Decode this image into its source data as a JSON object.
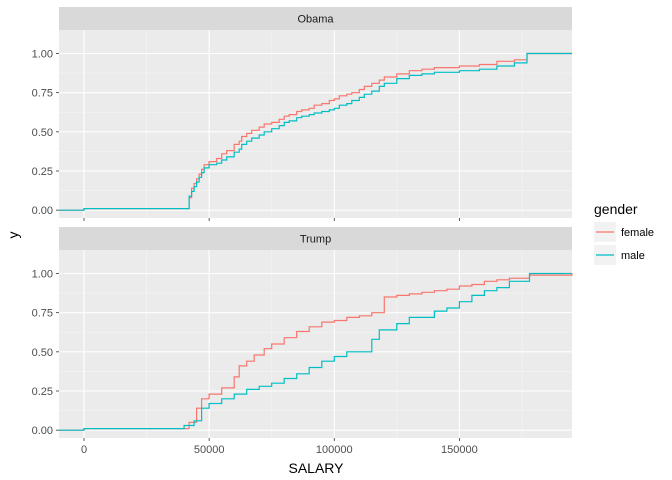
{
  "chart_data": {
    "type": "line",
    "subtype": "step (empirical cumulative distribution)",
    "xlabel": "SALARY",
    "ylabel": "y",
    "xlim": [
      -10000,
      195000
    ],
    "ylim": [
      -0.05,
      1.15
    ],
    "x_ticks": [
      0,
      50000,
      100000,
      150000
    ],
    "x_tick_labels": [
      "0",
      "50000",
      "100000",
      "150000"
    ],
    "y_ticks": [
      0,
      0.25,
      0.5,
      0.75,
      1
    ],
    "y_tick_labels": [
      "0.00",
      "0.25",
      "0.50",
      "0.75",
      "1.00"
    ],
    "grid": true,
    "legend": {
      "title": "gender",
      "position": "right",
      "entries": [
        {
          "name": "female",
          "color": "#F8766D"
        },
        {
          "name": "male",
          "color": "#00BFC4"
        }
      ]
    },
    "colors": {
      "panel_bg": "#EBEBEB",
      "strip_bg": "#D9D9D9",
      "grid_major": "#FFFFFF",
      "female": "#F8766D",
      "male": "#00BFC4"
    },
    "panels": [
      {
        "label": "Obama",
        "series": [
          {
            "name": "female",
            "x": [
              -10000,
              0,
              42000,
              43000,
              44000,
              45000,
              46000,
              47000,
              48000,
              50000,
              53000,
              55000,
              57000,
              60000,
              62000,
              63000,
              65000,
              67000,
              70000,
              72000,
              75000,
              78000,
              80000,
              82000,
              85000,
              87000,
              90000,
              92000,
              95000,
              98000,
              100000,
              102000,
              105000,
              107000,
              110000,
              112000,
              115000,
              118000,
              120000,
              125000,
              130000,
              135000,
              140000,
              150000,
              158000,
              165000,
              172000,
              177000,
              195000
            ],
            "y": [
              0,
              0.01,
              0.08,
              0.14,
              0.17,
              0.2,
              0.23,
              0.26,
              0.29,
              0.31,
              0.33,
              0.36,
              0.38,
              0.42,
              0.44,
              0.47,
              0.49,
              0.51,
              0.53,
              0.55,
              0.56,
              0.58,
              0.6,
              0.61,
              0.63,
              0.64,
              0.65,
              0.67,
              0.68,
              0.7,
              0.71,
              0.73,
              0.74,
              0.75,
              0.77,
              0.79,
              0.81,
              0.83,
              0.85,
              0.87,
              0.89,
              0.9,
              0.91,
              0.92,
              0.93,
              0.95,
              0.96,
              1.0,
              1.0
            ]
          },
          {
            "name": "male",
            "x": [
              -10000,
              0,
              42000,
              43000,
              44000,
              45000,
              46000,
              47000,
              48000,
              50000,
              53000,
              55000,
              57000,
              60000,
              62000,
              63000,
              65000,
              67000,
              70000,
              72000,
              75000,
              78000,
              80000,
              82000,
              85000,
              87000,
              90000,
              92000,
              95000,
              98000,
              100000,
              102000,
              105000,
              107000,
              110000,
              112000,
              115000,
              118000,
              120000,
              125000,
              130000,
              135000,
              140000,
              150000,
              158000,
              165000,
              172000,
              177000,
              195000
            ],
            "y": [
              0,
              0.01,
              0.09,
              0.12,
              0.15,
              0.18,
              0.21,
              0.24,
              0.27,
              0.29,
              0.3,
              0.32,
              0.34,
              0.37,
              0.39,
              0.42,
              0.44,
              0.46,
              0.48,
              0.5,
              0.52,
              0.54,
              0.56,
              0.57,
              0.59,
              0.6,
              0.61,
              0.62,
              0.63,
              0.64,
              0.65,
              0.67,
              0.68,
              0.7,
              0.72,
              0.74,
              0.76,
              0.79,
              0.81,
              0.84,
              0.86,
              0.87,
              0.88,
              0.89,
              0.9,
              0.92,
              0.94,
              1.0,
              1.0
            ]
          }
        ]
      },
      {
        "label": "Trump",
        "series": [
          {
            "name": "female",
            "x": [
              -10000,
              0,
              38000,
              42000,
              45000,
              47000,
              50000,
              55000,
              60000,
              62000,
              65000,
              68000,
              72000,
              75000,
              80000,
              85000,
              90000,
              95000,
              100000,
              105000,
              110000,
              115000,
              120000,
              125000,
              130000,
              135000,
              140000,
              145000,
              150000,
              155000,
              160000,
              165000,
              170000,
              178000,
              195000
            ],
            "y": [
              0,
              0.01,
              0.01,
              0.05,
              0.14,
              0.2,
              0.23,
              0.27,
              0.34,
              0.41,
              0.44,
              0.48,
              0.52,
              0.55,
              0.59,
              0.63,
              0.66,
              0.69,
              0.7,
              0.72,
              0.73,
              0.75,
              0.85,
              0.86,
              0.87,
              0.88,
              0.89,
              0.9,
              0.92,
              0.93,
              0.95,
              0.96,
              0.97,
              0.99,
              1.0
            ]
          },
          {
            "name": "male",
            "x": [
              -10000,
              0,
              30000,
              40000,
              44000,
              47000,
              50000,
              55000,
              60000,
              65000,
              70000,
              75000,
              80000,
              85000,
              90000,
              95000,
              100000,
              105000,
              110000,
              115000,
              118000,
              125000,
              130000,
              140000,
              145000,
              150000,
              155000,
              160000,
              165000,
              170000,
              178000,
              195000
            ],
            "y": [
              0,
              0.01,
              0.01,
              0.03,
              0.06,
              0.14,
              0.17,
              0.2,
              0.23,
              0.26,
              0.28,
              0.3,
              0.33,
              0.36,
              0.4,
              0.44,
              0.47,
              0.5,
              0.5,
              0.58,
              0.64,
              0.68,
              0.72,
              0.76,
              0.78,
              0.82,
              0.86,
              0.89,
              0.91,
              0.95,
              1.0,
              1.0
            ]
          }
        ]
      }
    ]
  }
}
